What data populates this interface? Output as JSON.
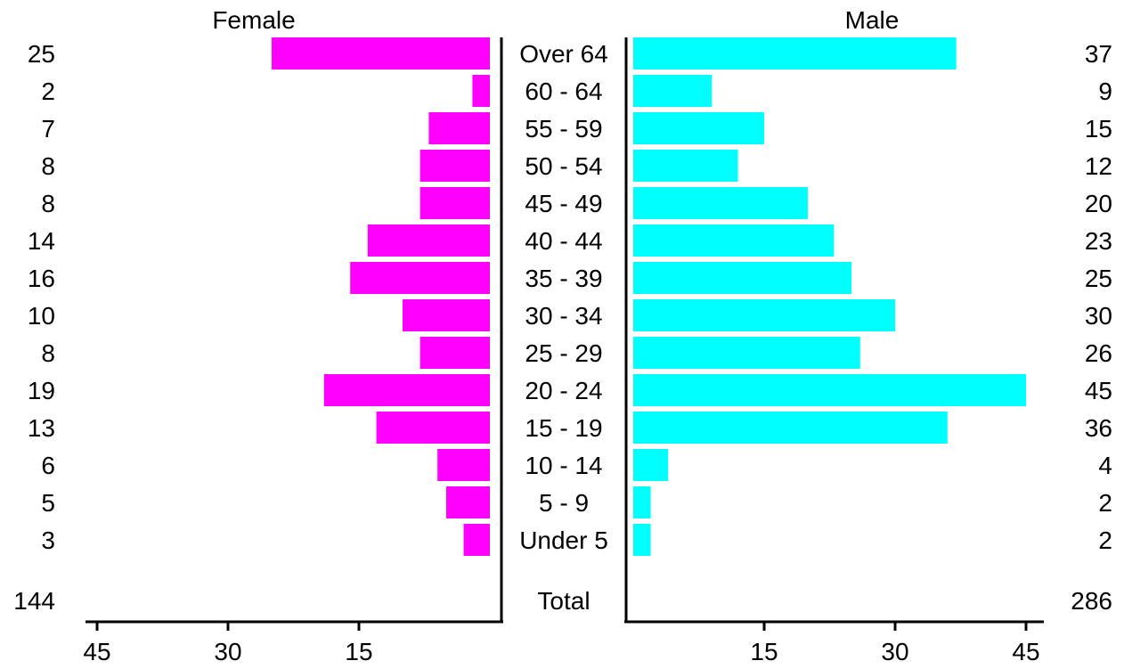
{
  "chart_data": {
    "type": "bar",
    "title": "",
    "categories": [
      "Over 64",
      "60 - 64",
      "55 - 59",
      "50 - 54",
      "45 - 49",
      "40 - 44",
      "35 - 39",
      "30 - 34",
      "25 - 29",
      "20 - 24",
      "15 - 19",
      "10 - 14",
      "5 - 9",
      "Under 5"
    ],
    "series": [
      {
        "name": "Female",
        "values": [
          25,
          2,
          7,
          8,
          8,
          14,
          16,
          10,
          8,
          19,
          13,
          6,
          5,
          3
        ],
        "color": "#ff00ff"
      },
      {
        "name": "Male",
        "values": [
          37,
          9,
          15,
          12,
          20,
          23,
          25,
          30,
          26,
          45,
          36,
          4,
          2,
          2
        ],
        "color": "#00ffff"
      }
    ],
    "value_labels": {
      "female": [
        "25",
        "2",
        "7",
        "8",
        "8",
        "14",
        "16",
        "10",
        "8",
        "19",
        "13",
        "6",
        "5",
        "3"
      ],
      "male": [
        "37",
        "9",
        "15",
        "12",
        "20",
        "23",
        "25",
        "30",
        "26",
        "45",
        "36",
        "4",
        "2",
        "2"
      ]
    },
    "total": {
      "label": "Total",
      "female": "144",
      "male": "286"
    },
    "female_axis": {
      "ticks": [
        "45",
        "30",
        "15"
      ],
      "tick_values": [
        45,
        30,
        15
      ],
      "range": [
        0,
        45
      ]
    },
    "male_axis": {
      "ticks": [
        "15",
        "30",
        "45"
      ],
      "tick_values": [
        15,
        30,
        45
      ],
      "range": [
        0,
        45
      ]
    }
  }
}
